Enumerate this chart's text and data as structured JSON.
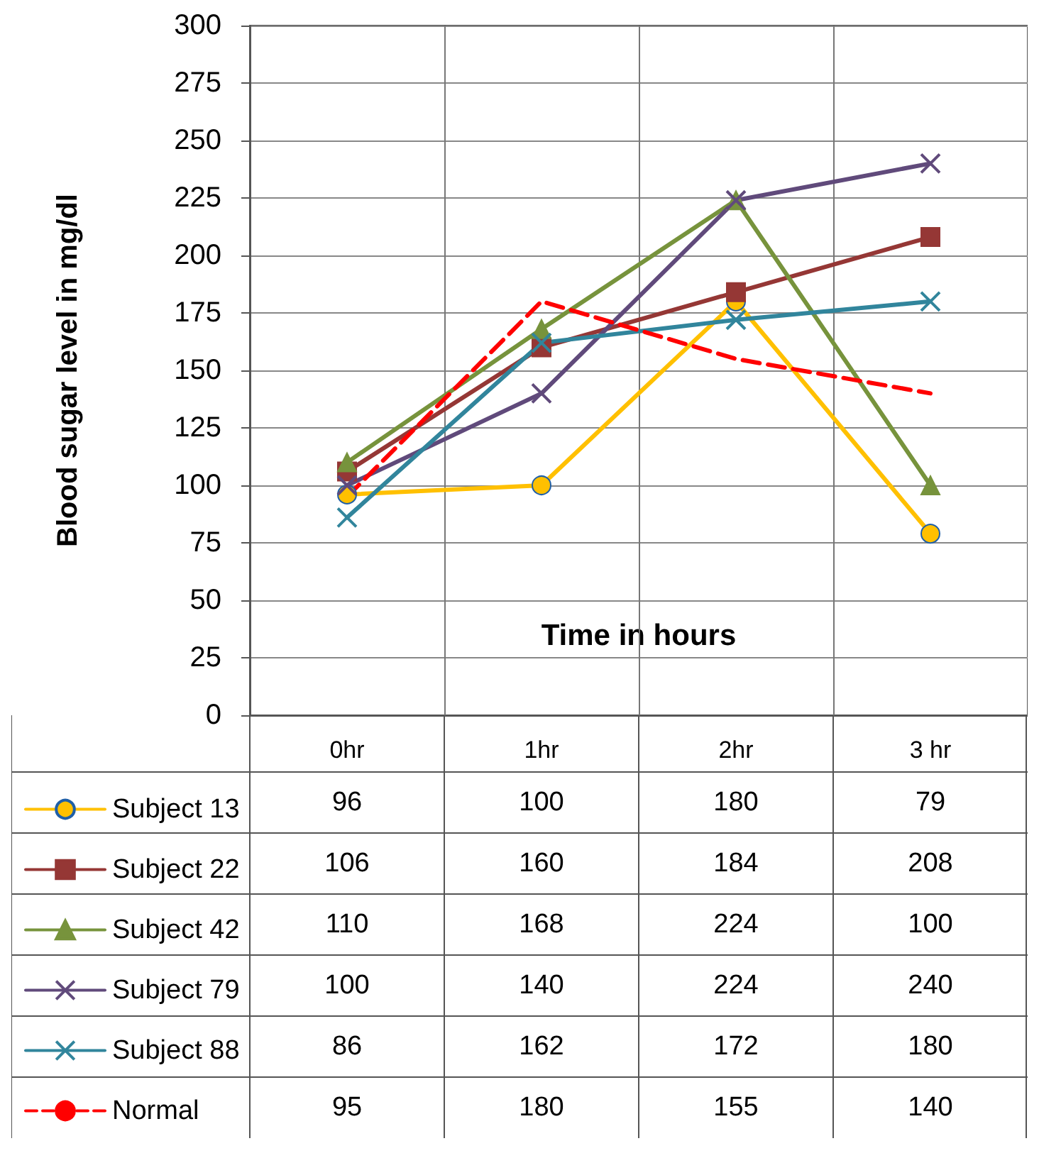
{
  "chart_data": {
    "type": "line",
    "xlabel": "Time in hours",
    "ylabel": "Blood sugar level in mg/dl",
    "categories": [
      "0hr",
      "1hr",
      "2hr",
      "3 hr"
    ],
    "ylim": [
      0,
      300
    ],
    "yticks": [
      0,
      25,
      50,
      75,
      100,
      125,
      150,
      175,
      200,
      225,
      250,
      275,
      300
    ],
    "grid": true,
    "legend": "bottom",
    "data_labels": true,
    "series": [
      {
        "name": "Subject 13",
        "color": "#ffc000",
        "marker": "circle",
        "values": [
          96,
          100,
          180,
          79
        ]
      },
      {
        "name": "Subject 22",
        "color": "#953735",
        "marker": "square",
        "values": [
          106,
          160,
          184,
          208
        ]
      },
      {
        "name": "Subject 42",
        "color": "#77933c",
        "marker": "triangle",
        "values": [
          110,
          168,
          224,
          100
        ]
      },
      {
        "name": "Subject 79",
        "color": "#604a7b",
        "marker": "cross",
        "values": [
          100,
          140,
          224,
          240
        ]
      },
      {
        "name": "Subject 88",
        "color": "#31859c",
        "marker": "cross",
        "values": [
          86,
          162,
          172,
          180
        ]
      },
      {
        "name": "Normal",
        "color": "#ff0000",
        "marker": "none",
        "line_style": "dashed",
        "values": [
          95,
          180,
          155,
          140
        ]
      }
    ]
  }
}
